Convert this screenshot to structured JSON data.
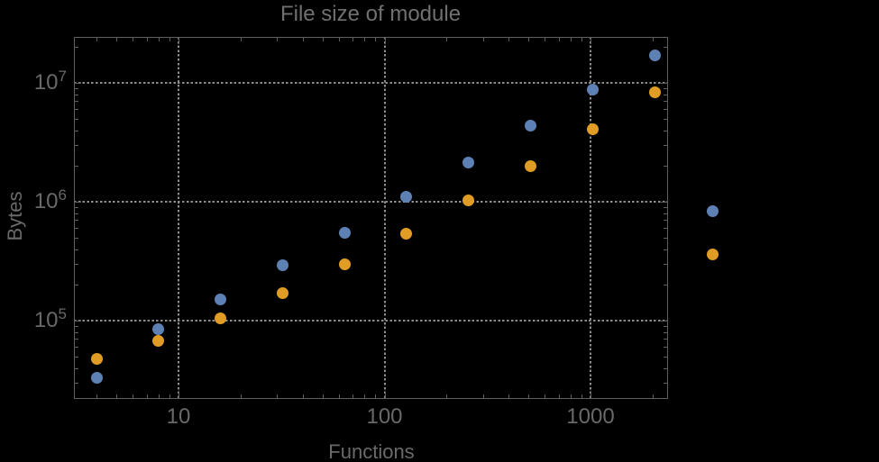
{
  "chart_data": {
    "type": "scatter",
    "title": "File size of module",
    "xlabel": "Functions",
    "ylabel": "Bytes",
    "log_x": true,
    "log_y": true,
    "grid": "dotted",
    "legend": "none",
    "xlim": [
      3.1,
      2380
    ],
    "ylim": [
      22000,
      24000000
    ],
    "x_major_ticks": {
      "values": [
        10,
        100,
        1000
      ],
      "labels": [
        "10",
        "100",
        "1000"
      ]
    },
    "y_major_ticks": {
      "values": [
        100000,
        1000000,
        10000000
      ],
      "mantissa": "10",
      "exponents": [
        "5",
        "6",
        "7"
      ]
    },
    "series": [
      {
        "name": "blue series",
        "color": "#5E81B5",
        "points": [
          [
            4,
            33000
          ],
          [
            8,
            84000
          ],
          [
            16,
            150000
          ],
          [
            32,
            290000
          ],
          [
            64,
            550000
          ],
          [
            128,
            1100000
          ],
          [
            256,
            2150000
          ],
          [
            512,
            4400000
          ],
          [
            1024,
            8700000
          ],
          [
            2048,
            17000000
          ],
          [
            3900,
            830000
          ]
        ]
      },
      {
        "name": "orange series",
        "color": "#E09C24",
        "points": [
          [
            4,
            48000
          ],
          [
            8,
            68000
          ],
          [
            16,
            105000
          ],
          [
            32,
            170000
          ],
          [
            64,
            300000
          ],
          [
            128,
            540000
          ],
          [
            256,
            1020000
          ],
          [
            512,
            2000000
          ],
          [
            1024,
            4100000
          ],
          [
            2048,
            8300000
          ],
          [
            3900,
            360000
          ]
        ]
      }
    ]
  },
  "colors": {
    "background": "#000000",
    "frame": "#5f5f5f",
    "gridline": "#8c8c8c",
    "text": "#696969",
    "title_text": "#707070"
  }
}
